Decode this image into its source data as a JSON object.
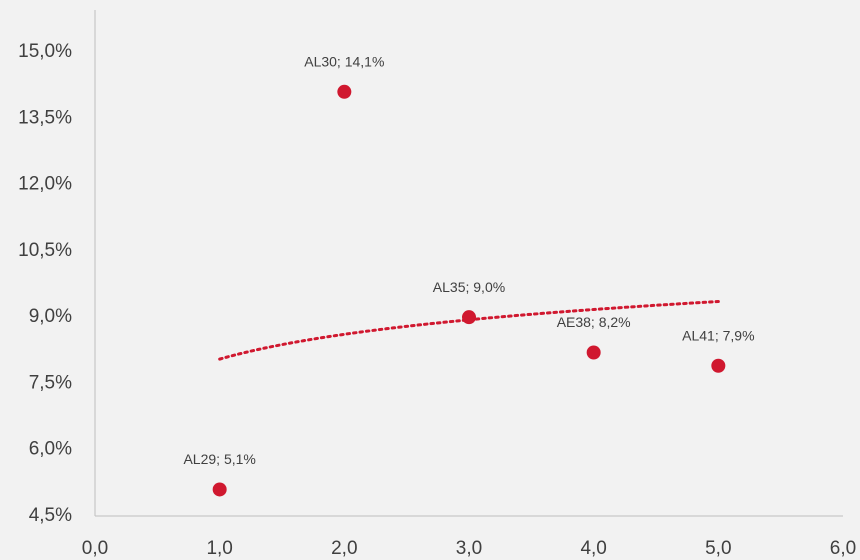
{
  "chart_data": {
    "type": "scatter",
    "title": "",
    "xlabel": "",
    "ylabel": "",
    "xlim": [
      0,
      6
    ],
    "ylim": [
      4.5,
      15.0
    ],
    "x_ticks": [
      0,
      1,
      2,
      3,
      4,
      5,
      6
    ],
    "x_tick_labels": [
      "0,0",
      "1,0",
      "2,0",
      "3,0",
      "4,0",
      "5,0",
      "6,0"
    ],
    "y_ticks": [
      4.5,
      6.0,
      7.5,
      9.0,
      10.5,
      12.0,
      13.5,
      15.0
    ],
    "y_tick_labels": [
      "4,5%",
      "6,0%",
      "7,5%",
      "9,0%",
      "10,5%",
      "12,0%",
      "13,5%",
      "15,0%"
    ],
    "grid": false,
    "marker_color": "#d0182f",
    "trendline_color": "#d0182f",
    "axis_color": "#bfbfbf",
    "text_color": "#404040",
    "points": [
      {
        "x": 1.0,
        "y": 5.1,
        "label": "AL29; 5,1%"
      },
      {
        "x": 2.0,
        "y": 14.1,
        "label": "AL30; 14,1%"
      },
      {
        "x": 3.0,
        "y": 9.0,
        "label": "AL35; 9,0%"
      },
      {
        "x": 4.0,
        "y": 8.2,
        "label": "AE38; 8,2%"
      },
      {
        "x": 5.0,
        "y": 7.9,
        "label": "AL41; 7,9%"
      }
    ],
    "trendline": {
      "type": "logarithmic",
      "x_range": [
        1.0,
        5.0
      ],
      "a": 8.05,
      "b": 0.81
    }
  }
}
